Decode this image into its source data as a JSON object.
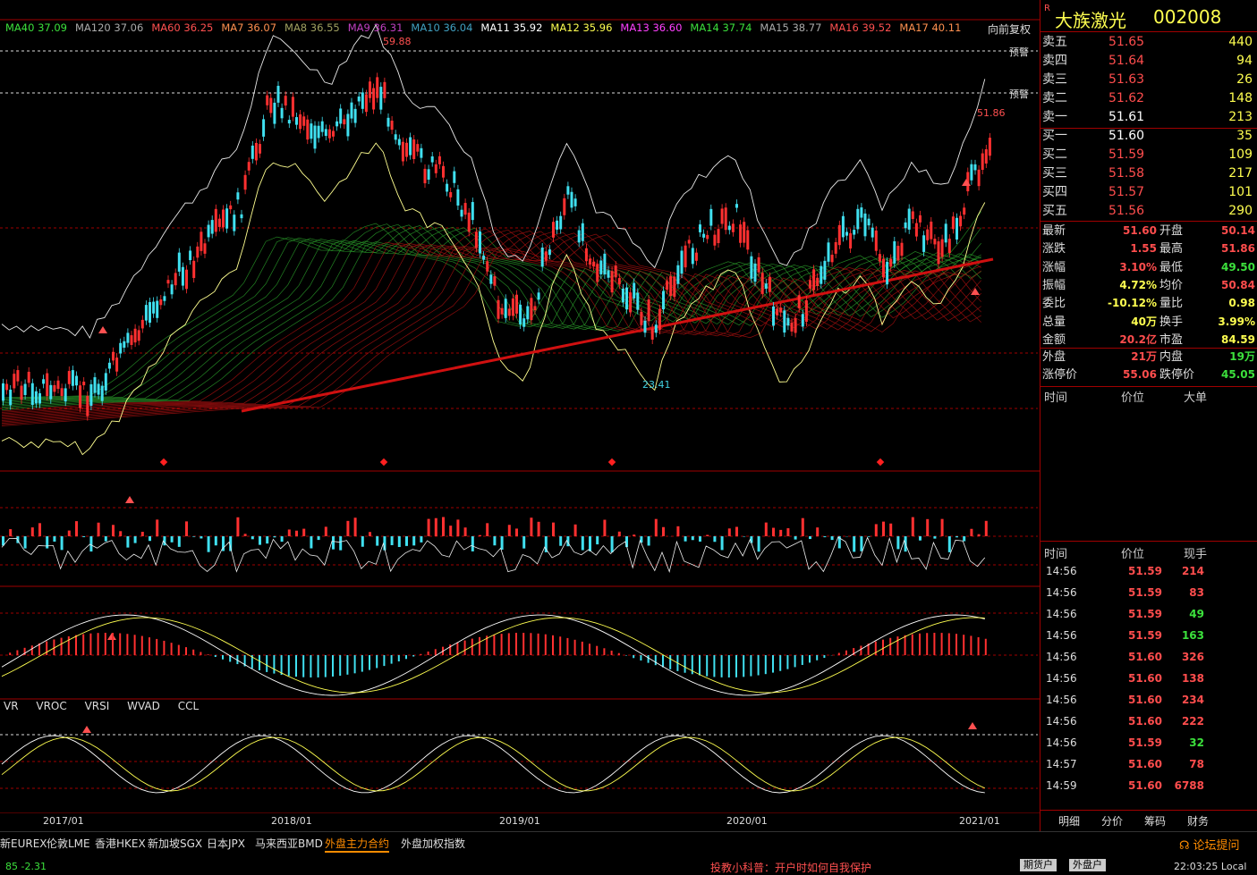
{
  "stock": {
    "name": "大族激光",
    "code": "002008",
    "flag": "R"
  },
  "ma_legend": [
    {
      "label": "MA40 37.09",
      "color": "#3ce03c"
    },
    {
      "label": "MA120 37.06",
      "color": "#aaaaaa"
    },
    {
      "label": "MA60 36.25",
      "color": "#ff5050"
    },
    {
      "label": "MA7 36.07",
      "color": "#ff9050"
    },
    {
      "label": "MA8 36.55",
      "color": "#a0a060"
    },
    {
      "label": "MA9 36.31",
      "color": "#c040c0"
    },
    {
      "label": "MA10 36.04",
      "color": "#40a0c0"
    },
    {
      "label": "MA11 35.92",
      "color": "#ffffff"
    },
    {
      "label": "MA12 35.96",
      "color": "#ffff50"
    },
    {
      "label": "MA13 36.60",
      "color": "#ff40ff"
    },
    {
      "label": "MA14 37.74",
      "color": "#3ce03c"
    },
    {
      "label": "MA15 38.77",
      "color": "#aaaaaa"
    },
    {
      "label": "MA16 39.52",
      "color": "#ff5050"
    },
    {
      "label": "MA17 40.11",
      "color": "#ff9050"
    }
  ],
  "adjust_label": "向前复权",
  "warn_label": "预警",
  "price_marks": {
    "high": "59.88",
    "low": "23.41",
    "current_high": "51.86"
  },
  "date_labels": [
    "2017/01",
    "2018/01",
    "2019/01",
    "2020/01",
    "2021/01"
  ],
  "indicator_tabs": [
    "VR",
    "VROC",
    "VRSI",
    "WVAD",
    "CCL"
  ],
  "orderbook": {
    "asks": [
      {
        "label": "卖五",
        "price": "51.65",
        "vol": "440"
      },
      {
        "label": "卖四",
        "price": "51.64",
        "vol": "94"
      },
      {
        "label": "卖三",
        "price": "51.63",
        "vol": "26"
      },
      {
        "label": "卖二",
        "price": "51.62",
        "vol": "148"
      },
      {
        "label": "卖一",
        "price": "51.61",
        "vol": "213"
      }
    ],
    "bids": [
      {
        "label": "买一",
        "price": "51.60",
        "vol": "35"
      },
      {
        "label": "买二",
        "price": "51.59",
        "vol": "109"
      },
      {
        "label": "买三",
        "price": "51.58",
        "vol": "217"
      },
      {
        "label": "买四",
        "price": "51.57",
        "vol": "101"
      },
      {
        "label": "买五",
        "price": "51.56",
        "vol": "290"
      }
    ]
  },
  "quote": [
    {
      "l1": "最新",
      "v1": "51.60",
      "c1": "red",
      "l2": "开盘",
      "v2": "50.14",
      "c2": "red"
    },
    {
      "l1": "涨跌",
      "v1": "1.55",
      "c1": "red",
      "l2": "最高",
      "v2": "51.86",
      "c2": "red"
    },
    {
      "l1": "涨幅",
      "v1": "3.10%",
      "c1": "red",
      "l2": "最低",
      "v2": "49.50",
      "c2": "green"
    },
    {
      "l1": "振幅",
      "v1": "4.72%",
      "c1": "yel",
      "l2": "均价",
      "v2": "50.84",
      "c2": "red"
    },
    {
      "l1": "委比",
      "v1": "-10.12%",
      "c1": "yel",
      "l2": "量比",
      "v2": "0.98",
      "c2": "yel"
    },
    {
      "l1": "总量",
      "v1": "40万",
      "c1": "yel",
      "l2": "换手",
      "v2": "3.99%",
      "c2": "yel"
    },
    {
      "l1": "金额",
      "v1": "20.2亿",
      "c1": "red",
      "l2": "市盈",
      "v2": "84.59",
      "c2": "yel"
    }
  ],
  "quote2": [
    {
      "l1": "外盘",
      "v1": "21万",
      "c1": "red",
      "l2": "内盘",
      "v2": "19万",
      "c2": "green"
    },
    {
      "l1": "涨停价",
      "v1": "55.06",
      "c1": "red",
      "l2": "跌停价",
      "v2": "45.05",
      "c2": "green"
    }
  ],
  "bigorder_header": [
    "时间",
    "价位",
    "大单"
  ],
  "ticks_header": [
    "时间",
    "价位",
    "现手"
  ],
  "ticks": [
    {
      "t": "14:56",
      "p": "51.59",
      "v": "214",
      "c": "red"
    },
    {
      "t": "14:56",
      "p": "51.59",
      "v": "83",
      "c": "red"
    },
    {
      "t": "14:56",
      "p": "51.59",
      "v": "49",
      "c": "green"
    },
    {
      "t": "14:56",
      "p": "51.59",
      "v": "163",
      "c": "green"
    },
    {
      "t": "14:56",
      "p": "51.60",
      "v": "326",
      "c": "red"
    },
    {
      "t": "14:56",
      "p": "51.60",
      "v": "138",
      "c": "red"
    },
    {
      "t": "14:56",
      "p": "51.60",
      "v": "234",
      "c": "red"
    },
    {
      "t": "14:56",
      "p": "51.60",
      "v": "222",
      "c": "red"
    },
    {
      "t": "14:56",
      "p": "51.59",
      "v": "32",
      "c": "green"
    },
    {
      "t": "14:57",
      "p": "51.60",
      "v": "78",
      "c": "red"
    },
    {
      "t": "14:59",
      "p": "51.60",
      "v": "6788",
      "c": "red"
    }
  ],
  "right_tabs": [
    "明细",
    "分价",
    "筹码",
    "财务"
  ],
  "market_tabs": [
    "新EUREX",
    "伦敦LME",
    "香港HKEX",
    "新加坡SGX",
    "日本JPX",
    "马来西亚BMD",
    "外盘主力合约",
    "外盘加权指数"
  ],
  "active_market_tab": "外盘主力合约",
  "forum_label": "论坛提问",
  "status": {
    "index": "85  -2.31",
    "promo": "投教小科普：开户时如何自我保护",
    "btn1": "期货户",
    "btn2": "外盘户",
    "time": "22:03:25 Local"
  }
}
